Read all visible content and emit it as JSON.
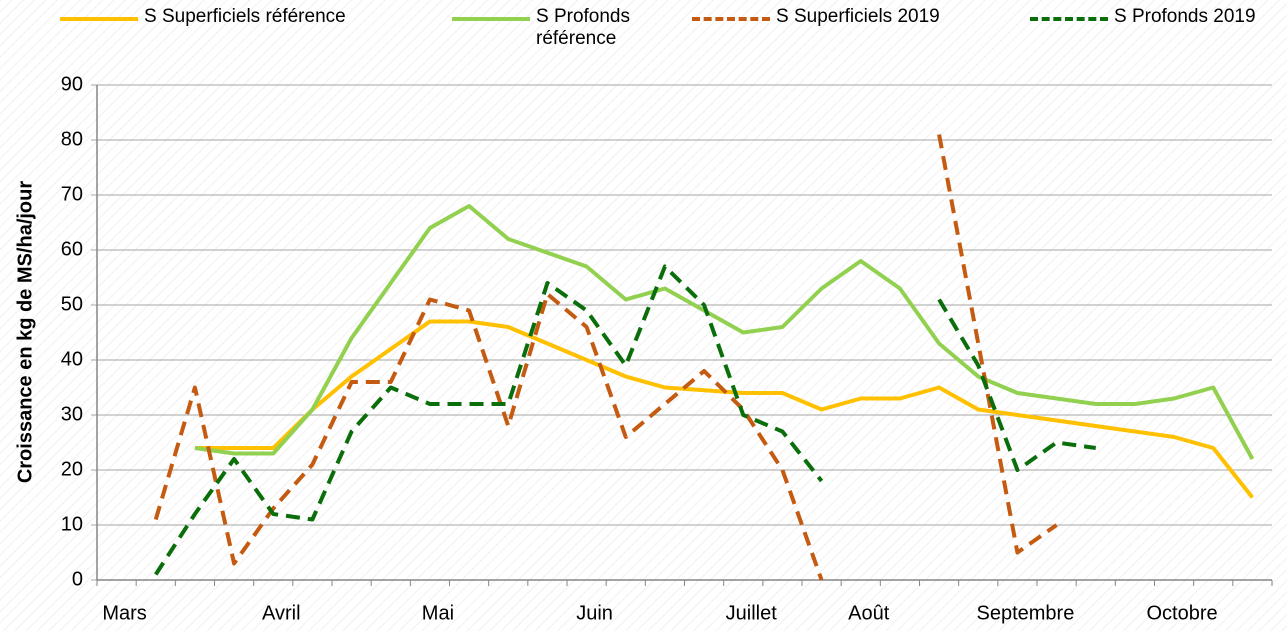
{
  "chart_data": {
    "type": "line",
    "y_label": "Croissance en kg de MS/ha/jour",
    "categories": [
      "Mars",
      null,
      null,
      null,
      "Avril",
      null,
      null,
      null,
      "Mai",
      null,
      null,
      null,
      "Juin",
      null,
      null,
      null,
      "Juillet",
      null,
      null,
      "Août",
      null,
      null,
      null,
      "Septembre",
      null,
      null,
      null,
      "Octobre",
      null,
      null
    ],
    "series": [
      {
        "name": "S Superficiels référence",
        "color": "#ffc000",
        "dashed": false,
        "values": [
          null,
          null,
          24,
          24,
          24,
          31,
          37,
          42,
          47,
          47,
          46,
          43,
          40,
          37,
          35,
          34.5,
          34,
          34,
          31,
          33,
          33,
          35,
          31,
          30,
          29,
          28,
          27,
          26,
          24,
          15
        ]
      },
      {
        "name": "S Profonds référence",
        "color": "#92d050",
        "dashed": false,
        "values": [
          null,
          null,
          24,
          23,
          23,
          31,
          44,
          54,
          64,
          68,
          62,
          59.5,
          57,
          51,
          53,
          49,
          45,
          46,
          53,
          58,
          53,
          43,
          37,
          34,
          33,
          32,
          32,
          33,
          35,
          22
        ]
      },
      {
        "name": "S Superficiels 2019",
        "color": "#c55a11",
        "dashed": true,
        "values": [
          null,
          11,
          35,
          3,
          13,
          21,
          36,
          36,
          51,
          49,
          28,
          52,
          46,
          26,
          32,
          38,
          31,
          20,
          0,
          null,
          null,
          81,
          43,
          5,
          10,
          null,
          null,
          null,
          null,
          null
        ]
      },
      {
        "name": "S Profonds 2019",
        "color": "#0a6e0a",
        "dashed": true,
        "values": [
          null,
          1,
          12,
          22,
          12,
          11,
          27,
          35,
          32,
          32,
          32,
          54,
          49,
          39,
          57,
          50,
          30,
          27,
          18,
          null,
          null,
          51,
          39,
          20,
          25,
          24,
          null,
          null,
          null,
          null
        ]
      }
    ],
    "ylim": [
      0,
      90
    ],
    "yticks": [
      0,
      10,
      20,
      30,
      40,
      50,
      60,
      70,
      80,
      90
    ],
    "grid": true,
    "legend": "top"
  }
}
